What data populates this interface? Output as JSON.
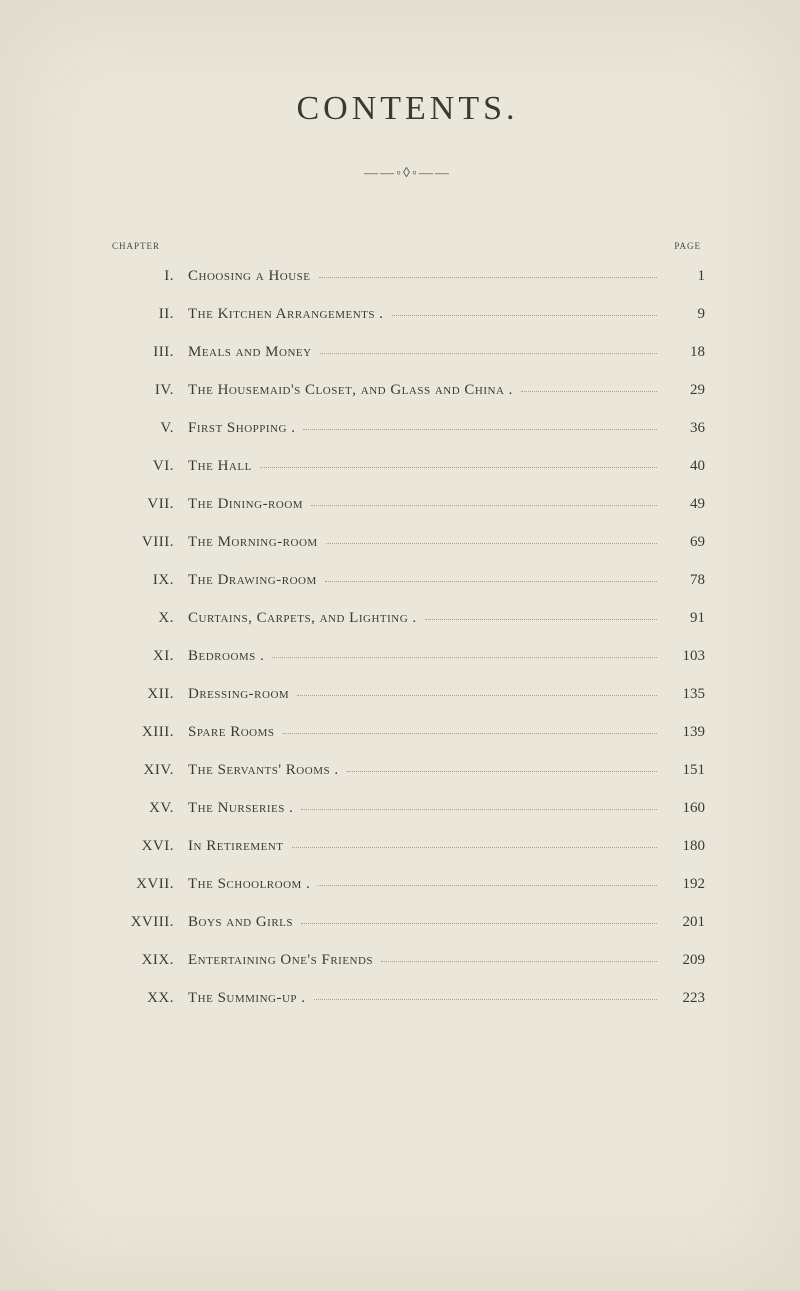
{
  "heading": "CONTENTS.",
  "ornament": "——◦◊◦——",
  "header": {
    "left": "chapter",
    "right": "page"
  },
  "entries": [
    {
      "num": "I.",
      "title": "Choosing a House",
      "page": "1"
    },
    {
      "num": "II.",
      "title": "The Kitchen Arrangements .",
      "page": "9"
    },
    {
      "num": "III.",
      "title": "Meals and Money",
      "page": "18"
    },
    {
      "num": "IV.",
      "title": "The Housemaid's Closet, and Glass and China .",
      "page": "29"
    },
    {
      "num": "V.",
      "title": "First Shopping .",
      "page": "36"
    },
    {
      "num": "VI.",
      "title": "The Hall",
      "page": "40"
    },
    {
      "num": "VII.",
      "title": "The Dining-room",
      "page": "49"
    },
    {
      "num": "VIII.",
      "title": "The Morning-room",
      "page": "69"
    },
    {
      "num": "IX.",
      "title": "The Drawing-room",
      "page": "78"
    },
    {
      "num": "X.",
      "title": "Curtains, Carpets, and Lighting .",
      "page": "91"
    },
    {
      "num": "XI.",
      "title": "Bedrooms .",
      "page": "103"
    },
    {
      "num": "XII.",
      "title": "Dressing-room",
      "page": "135"
    },
    {
      "num": "XIII.",
      "title": "Spare Rooms",
      "page": "139"
    },
    {
      "num": "XIV.",
      "title": "The Servants' Rooms .",
      "page": "151"
    },
    {
      "num": "XV.",
      "title": "The Nurseries .",
      "page": "160"
    },
    {
      "num": "XVI.",
      "title": "In Retirement",
      "page": "180"
    },
    {
      "num": "XVII.",
      "title": "The Schoolroom .",
      "page": "192"
    },
    {
      "num": "XVIII.",
      "title": "Boys and Girls",
      "page": "201"
    },
    {
      "num": "XIX.",
      "title": "Entertaining One's Friends",
      "page": "209"
    },
    {
      "num": "XX.",
      "title": "The Summing-up .",
      "page": "223"
    }
  ]
}
